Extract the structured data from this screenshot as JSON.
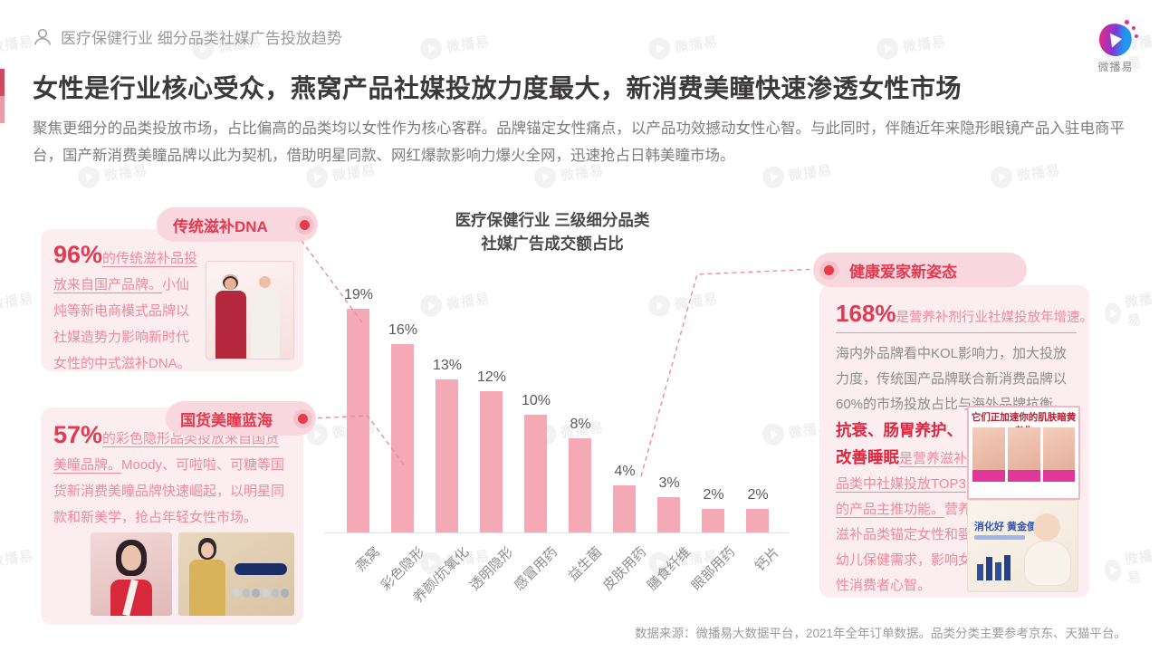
{
  "page": {
    "breadcrumb": "医疗保健行业 细分品类社媒广告投放趋势",
    "brand": "微播易",
    "title": "女性是行业核心受众，燕窝产品社媒投放力度最大，新消费美瞳快速渗透女性市场",
    "intro": "聚焦更细分的品类投放市场，占比偏高的品类均以女性作为核心客群。品牌锚定女性痛点，以产品功效撼动女性心智。与此同时，伴随近年来隐形眼镜产品入驻电商平台，国产新消费美瞳品牌以此为契机，借助明星同款、网红爆款影响力爆火全网，迅速抢占日韩美瞳市场。",
    "source": "数据来源：微播易大数据平台，2021年全年订单数据。品类分类主要参考京东、天猫平台。"
  },
  "chart_data": {
    "type": "bar",
    "title": "医疗保健行业 三级细分品类 社媒广告成交额占比",
    "title_lines": [
      "医疗保健行业 三级细分品类",
      "社媒广告成交额占比"
    ],
    "categories": [
      "燕窝",
      "彩色隐形",
      "养颜/抗氧化",
      "透明隐形",
      "感冒用药",
      "益生菌",
      "皮肤用药",
      "膳食纤维",
      "眼部用药",
      "钙片"
    ],
    "values": [
      19,
      16,
      13,
      12,
      10,
      8,
      4,
      3,
      2,
      2
    ],
    "unit": "%",
    "xlabel": "",
    "ylabel": "",
    "ylim": [
      0,
      20
    ],
    "grid": false,
    "value_labels_shown": true,
    "bar_color": "#f5a8b5",
    "legend": "none"
  },
  "callouts": {
    "left_top": {
      "tag": "传统滋补DNA",
      "stat": "96%",
      "underlined": "的传统滋补品投放来自国产品牌。",
      "rest": "小仙炖等新电商模式品牌以社媒造势力影响新时代女性的中式滋补DNA。"
    },
    "left_bottom": {
      "tag": "国货美瞳蓝海",
      "stat": "57%",
      "underlined": "的彩色隐形品类投放来自国货美瞳品牌。",
      "rest": "Moody、可啦啦、可糖等国货新消费美瞳品牌快速崛起，以明星同款和新美学，抢占年轻女性市场。"
    },
    "right": {
      "tag": "健康爱家新姿态",
      "stat": "168%",
      "underlined": "是营养补剂行业社媒投放年增速。",
      "gray_text": "海内外品牌看中KOL影响力，加大投放力度，传统国产品牌联合新消费品牌以60%的市场投放占比与海外品牌抗衡。",
      "block2_bold": "抗衰、肠胃养护、改善睡眠",
      "block2_underlined": "是营养滋补品类中社媒投放TOP3的产品主推功能。",
      "block2_rest": "营养滋补品类锚定女性和婴幼儿保健需求，影响女性消费者心智。",
      "img_top_caption": "它们正加速你的肌肤暗黄老化",
      "img_bottom_caption": "消化好 黄金便"
    }
  },
  "colors": {
    "accent_red": "#e23a50",
    "pink_text": "#ee8a9b",
    "bar_pink": "#f5a8b5",
    "card_bg": "#fcedf0",
    "pill_bg": "#f9d7de"
  },
  "watermark": {
    "text": "微播易"
  }
}
